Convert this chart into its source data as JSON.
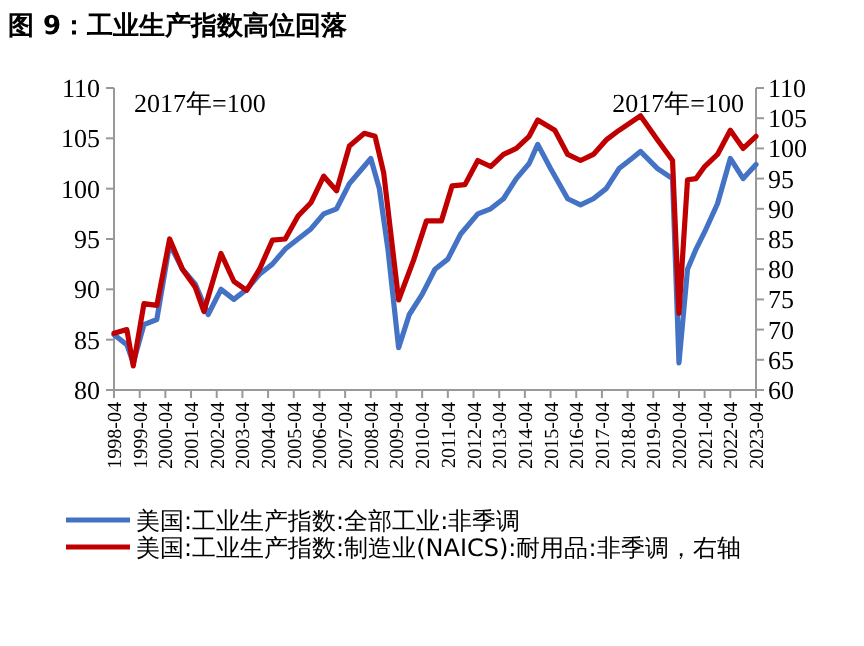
{
  "chart_data": {
    "type": "line",
    "title": "图 9：工业生产指数高位回落",
    "annotations": [
      "2017年=100",
      "2017年=100"
    ],
    "xlim": [
      "1998-04",
      "2023-04"
    ],
    "xticks": [
      "1998-04",
      "1999-04",
      "2000-04",
      "2001-04",
      "2002-04",
      "2003-04",
      "2004-04",
      "2005-04",
      "2006-04",
      "2007-04",
      "2008-04",
      "2009-04",
      "2010-04",
      "2011-04",
      "2012-04",
      "2013-04",
      "2014-04",
      "2015-04",
      "2016-04",
      "2017-04",
      "2018-04",
      "2019-04",
      "2020-04",
      "2021-04",
      "2022-04",
      "2023-04"
    ],
    "ylim": [
      80,
      110
    ],
    "yticks": [
      80,
      85,
      90,
      95,
      100,
      105,
      110
    ],
    "y2lim": [
      60,
      110
    ],
    "y2ticks": [
      60,
      65,
      70,
      75,
      80,
      85,
      90,
      95,
      100,
      105,
      110
    ],
    "legend": "bottom",
    "grid": false,
    "marker": "none",
    "line_style": "solid",
    "series": [
      {
        "name": "美国:工业生产指数:全部工业:非季调",
        "color": "#4472c4",
        "x": [
          "1998-04",
          "1998-10",
          "1999-01",
          "1999-06",
          "1999-12",
          "2000-06",
          "2000-12",
          "2001-06",
          "2001-12",
          "2002-06",
          "2002-12",
          "2003-06",
          "2003-12",
          "2004-06",
          "2004-12",
          "2005-06",
          "2005-12",
          "2006-06",
          "2006-12",
          "2007-06",
          "2007-12",
          "2008-04",
          "2008-08",
          "2008-12",
          "2009-05",
          "2009-10",
          "2010-04",
          "2010-10",
          "2011-04",
          "2011-10",
          "2012-06",
          "2012-12",
          "2013-06",
          "2013-12",
          "2014-06",
          "2014-10",
          "2015-04",
          "2015-12",
          "2016-06",
          "2016-12",
          "2017-06",
          "2017-12",
          "2018-06",
          "2018-10",
          "2019-06",
          "2020-01",
          "2020-04",
          "2020-08",
          "2020-12",
          "2021-04",
          "2021-10",
          "2022-04",
          "2022-10",
          "2023-04"
        ],
        "values": [
          85.5,
          84.5,
          82.7,
          86.5,
          87,
          94.5,
          92,
          90.5,
          87.5,
          90,
          89,
          90,
          91.5,
          92.5,
          94,
          95,
          96,
          97.5,
          98,
          100.5,
          102,
          103,
          100,
          94,
          84.2,
          87.5,
          89.5,
          92,
          93,
          95.5,
          97.5,
          98,
          99,
          101,
          102.5,
          104.4,
          102,
          99,
          98.4,
          99,
          100,
          102,
          103,
          103.7,
          102,
          101,
          82.7,
          92,
          94,
          95.7,
          98.5,
          103,
          101,
          102.4
        ]
      },
      {
        "name": "美国:工业生产指数:制造业(NAICS):耐用品:非季调，右轴",
        "color": "#c00000",
        "axis": "y2",
        "x": [
          "1998-04",
          "1998-10",
          "1999-01",
          "1999-06",
          "1999-12",
          "2000-06",
          "2000-12",
          "2001-06",
          "2001-10",
          "2002-06",
          "2002-12",
          "2003-06",
          "2003-12",
          "2004-06",
          "2004-12",
          "2005-06",
          "2005-12",
          "2006-06",
          "2006-12",
          "2007-06",
          "2008-01",
          "2008-06",
          "2008-10",
          "2009-05",
          "2009-12",
          "2010-06",
          "2011-01",
          "2011-06",
          "2011-12",
          "2012-06",
          "2012-12",
          "2013-06",
          "2013-12",
          "2014-06",
          "2014-10",
          "2015-06",
          "2015-12",
          "2016-06",
          "2016-12",
          "2017-06",
          "2017-12",
          "2018-10",
          "2019-06",
          "2020-01",
          "2020-04",
          "2020-08",
          "2020-12",
          "2021-04",
          "2021-10",
          "2022-04",
          "2022-10",
          "2023-04"
        ],
        "values": [
          69.4,
          70,
          64,
          74.3,
          74,
          85,
          80,
          77,
          73,
          82.6,
          78,
          76.5,
          80,
          84.8,
          85,
          88.8,
          91,
          95.4,
          93,
          100.4,
          102.5,
          102,
          96,
          74.9,
          81.5,
          88,
          88,
          93.8,
          94,
          98,
          97,
          99,
          100,
          102,
          104.7,
          103,
          99,
          98,
          99,
          101.4,
          103,
          105.4,
          101.4,
          98,
          72.7,
          94.8,
          95,
          97,
          99,
          103,
          100,
          102
        ]
      }
    ]
  }
}
